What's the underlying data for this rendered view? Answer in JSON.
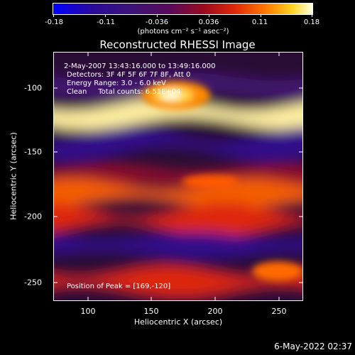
{
  "colorbar": {
    "ticks": [
      "-0.18",
      "-0.11",
      "-0.036",
      "0.036",
      "0.11",
      "0.18"
    ],
    "units": "(photons cm⁻² s⁻¹ asec⁻²)"
  },
  "title": "Reconstructed RHESSI Image",
  "annotations": {
    "line1": "2-May-2007 13:43:16.000 to 13:49:16.000",
    "line2": "Detectors: 3F 4F 5F 6F 7F 8F, Att 0",
    "line3": "Energy Range: 3.0 - 6.0 keV",
    "line4": "Clean     Total counts: 6.51E+04",
    "peak": "Position of Peak = [169,-120]"
  },
  "axes": {
    "xlabel": "Heliocentric X (arcsec)",
    "ylabel": "Heliocentric Y (arcsec)",
    "xticks": [
      "100",
      "150",
      "200",
      "250"
    ],
    "yticks": [
      "-100",
      "-150",
      "-200",
      "-250"
    ]
  },
  "footer": {
    "timestamp": "6-May-2022 02:37"
  },
  "chart_data": {
    "type": "heatmap",
    "title": "Reconstructed RHESSI Image",
    "xlabel": "Heliocentric X (arcsec)",
    "ylabel": "Heliocentric Y (arcsec)",
    "xlim": [
      72,
      267
    ],
    "ylim": [
      -265,
      -72
    ],
    "xticks": [
      100,
      150,
      200,
      250
    ],
    "yticks": [
      -100,
      -150,
      -200,
      -250
    ],
    "color_range": [
      -0.18,
      0.18
    ],
    "colorbar_ticks": [
      -0.18,
      -0.11,
      -0.036,
      0.036,
      0.11,
      0.18
    ],
    "peak": {
      "x": 169,
      "y": -120
    },
    "bands": [
      {
        "y": -98,
        "value": -0.06
      },
      {
        "y": -120,
        "value": 0.17
      },
      {
        "y": -143,
        "value": -0.1
      },
      {
        "y": -170,
        "value": 0.02
      },
      {
        "y": -182,
        "value": 0.1
      },
      {
        "y": -202,
        "value": 0.07
      },
      {
        "y": -222,
        "value": -0.1
      },
      {
        "y": -250,
        "value": 0.07
      }
    ]
  }
}
